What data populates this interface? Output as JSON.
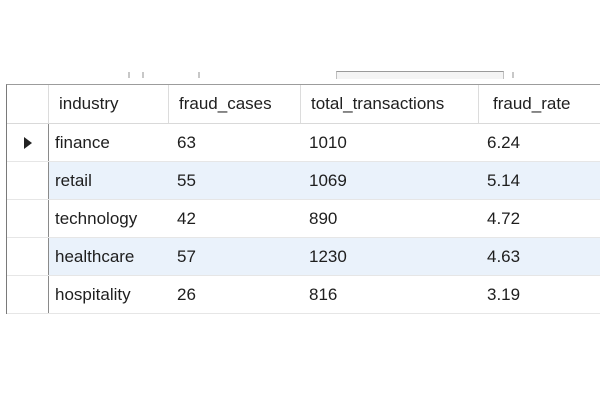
{
  "table": {
    "columns": [
      "industry",
      "fraud_cases",
      "total_transactions",
      "fraud_rate"
    ],
    "rows": [
      {
        "industry": "finance",
        "fraud_cases": "63",
        "total_transactions": "1010",
        "fraud_rate": "6.24",
        "current": true
      },
      {
        "industry": "retail",
        "fraud_cases": "55",
        "total_transactions": "1069",
        "fraud_rate": "5.14",
        "current": false
      },
      {
        "industry": "technology",
        "fraud_cases": "42",
        "total_transactions": "890",
        "fraud_rate": "4.72",
        "current": false
      },
      {
        "industry": "healthcare",
        "fraud_cases": "57",
        "total_transactions": "1230",
        "fraud_rate": "4.63",
        "current": false
      },
      {
        "industry": "hospitality",
        "fraud_cases": "26",
        "total_transactions": "816",
        "fraud_rate": "3.19",
        "current": false
      }
    ]
  },
  "icons": {
    "current_row": "row-pointer-icon"
  },
  "colors": {
    "alt_row": "#eaf2fb",
    "grid_line": "#7a7a7a"
  }
}
